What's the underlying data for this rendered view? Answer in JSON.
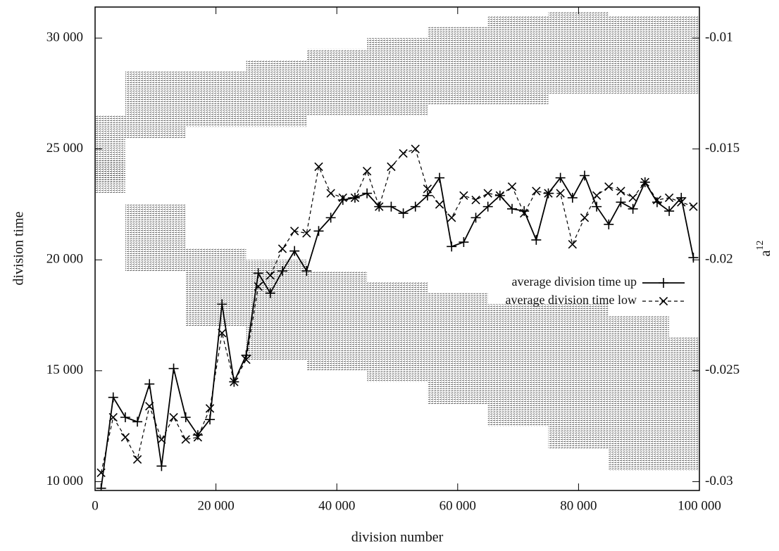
{
  "chart_data": {
    "type": "line",
    "xlabel": "division number",
    "ylabel": "division time",
    "y2label": {
      "text": "a",
      "superscript": "12"
    },
    "x": [
      1000,
      3000,
      5000,
      7000,
      9000,
      11000,
      13000,
      15000,
      17000,
      19000,
      21000,
      23000,
      25000,
      27000,
      29000,
      31000,
      33000,
      35000,
      37000,
      39000,
      41000,
      43000,
      45000,
      47000,
      49000,
      51000,
      53000,
      55000,
      57000,
      59000,
      61000,
      63000,
      65000,
      67000,
      69000,
      71000,
      73000,
      75000,
      77000,
      79000,
      81000,
      83000,
      85000,
      87000,
      89000,
      91000,
      93000,
      95000,
      97000,
      99000
    ],
    "series": [
      {
        "name": "average division time up",
        "color": "#000000",
        "marker": "plus",
        "dashed": false,
        "values": [
          9700,
          13800,
          12900,
          12700,
          14400,
          10700,
          15100,
          12900,
          12100,
          12800,
          18000,
          14500,
          15700,
          19400,
          18500,
          19500,
          20400,
          19500,
          21300,
          21900,
          22700,
          22800,
          23000,
          22400,
          22400,
          22100,
          22400,
          22900,
          23700,
          20600,
          20800,
          21900,
          22400,
          22900,
          22300,
          22200,
          20900,
          23000,
          23700,
          22800,
          23800,
          22400,
          21600,
          22600,
          22300,
          23500,
          22600,
          22200,
          22800,
          20100
        ]
      },
      {
        "name": "average division time low",
        "color": "#000000",
        "marker": "cross",
        "dashed": true,
        "values": [
          10400,
          12900,
          12000,
          11000,
          13400,
          11900,
          12900,
          11900,
          12000,
          13300,
          16700,
          14500,
          15500,
          18800,
          19300,
          20500,
          21300,
          21200,
          24200,
          23000,
          22800,
          22800,
          24000,
          22400,
          24200,
          24800,
          25000,
          23200,
          22500,
          21900,
          22900,
          22700,
          23000,
          22900,
          23300,
          22100,
          23100,
          23000,
          23000,
          20700,
          21900,
          22900,
          23300,
          23100,
          22800,
          23500,
          22700,
          22800,
          22600,
          22400
        ]
      }
    ],
    "bands": {
      "x": [
        0,
        10000,
        20000,
        30000,
        40000,
        50000,
        60000,
        70000,
        80000,
        90000,
        100000
      ],
      "color": "#555555",
      "axis": "y2",
      "ranges": [
        {
          "lower": [
            -0.0165,
            -0.0145,
            -0.014,
            -0.014,
            -0.0135,
            -0.0135,
            -0.013,
            -0.013,
            -0.0125,
            -0.0125,
            -0.0125
          ],
          "upper": [
            -0.0135,
            -0.0115,
            -0.0115,
            -0.011,
            -0.0105,
            -0.01,
            -0.0095,
            -0.009,
            -0.0088,
            -0.009,
            -0.009
          ]
        },
        {
          "lower": [
            -0.017,
            -0.0205,
            -0.023,
            -0.0245,
            -0.025,
            -0.0255,
            -0.0265,
            -0.0275,
            -0.0285,
            -0.0295,
            -0.0295
          ],
          "upper": [
            -0.0155,
            -0.0175,
            -0.0195,
            -0.02,
            -0.0205,
            -0.021,
            -0.0215,
            -0.022,
            -0.022,
            -0.0225,
            -0.0235
          ]
        }
      ]
    },
    "xlim": [
      0,
      100000
    ],
    "xticks": [
      0,
      {
        "value": 20000,
        "label": "20 000"
      },
      {
        "value": 40000,
        "label": "40 000"
      },
      {
        "value": 60000,
        "label": "60 000"
      },
      {
        "value": 80000,
        "label": "80 000"
      },
      {
        "value": 100000,
        "label": "100 000"
      }
    ],
    "ylim": [
      9600,
      31400
    ],
    "yticks": [
      {
        "value": 10000,
        "label": "10 000"
      },
      {
        "value": 15000,
        "label": "15 000"
      },
      {
        "value": 20000,
        "label": "20 000"
      },
      {
        "value": 25000,
        "label": "25 000"
      },
      {
        "value": 30000,
        "label": "30 000"
      }
    ],
    "y2lim": [
      -0.0304,
      -0.0086
    ],
    "y2ticks": [
      -0.03,
      -0.025,
      -0.02,
      -0.015,
      -0.01
    ],
    "legend": "center-right"
  }
}
